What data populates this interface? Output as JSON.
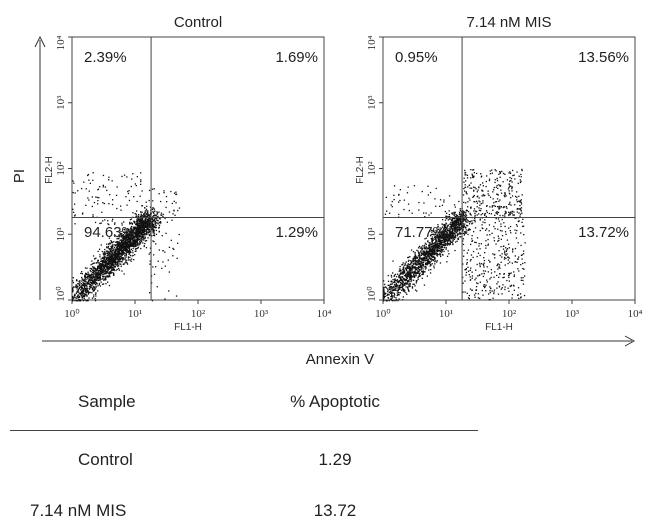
{
  "axis_labels": {
    "y_global": "PI",
    "x_global": "Annexin V",
    "x_panel": "FL1-H",
    "y_panel": "FL2-H"
  },
  "chart_data": [
    {
      "type": "scatter",
      "title": "Control",
      "xlabel": "FL1-H",
      "ylabel": "FL2-H",
      "log_scale": true,
      "xlim": [
        1,
        10000
      ],
      "ylim": [
        1,
        10000
      ],
      "tick_labels": [
        "10⁰",
        "10¹",
        "10²",
        "10³",
        "10⁴"
      ],
      "gate": {
        "x": 18,
        "y": 18
      },
      "quadrants": {
        "upper_left": "2.39%",
        "upper_right": "1.69%",
        "lower_left": "94.63%",
        "lower_right": "1.29%"
      }
    },
    {
      "type": "scatter",
      "title": "7.14 nM MIS",
      "xlabel": "FL1-H",
      "ylabel": "FL2-H",
      "log_scale": true,
      "xlim": [
        1,
        10000
      ],
      "ylim": [
        1,
        10000
      ],
      "tick_labels": [
        "10⁰",
        "10¹",
        "10²",
        "10³",
        "10⁴"
      ],
      "gate": {
        "x": 18,
        "y": 18
      },
      "quadrants": {
        "upper_left": "0.95%",
        "upper_right": "13.56%",
        "lower_left": "71.77%",
        "lower_right": "13.72%"
      }
    }
  ],
  "table": {
    "headers": [
      "Sample",
      "% Apoptotic"
    ],
    "rows": [
      [
        "Control",
        "1.29"
      ],
      [
        "7.14 nM MIS",
        "13.72"
      ]
    ]
  }
}
